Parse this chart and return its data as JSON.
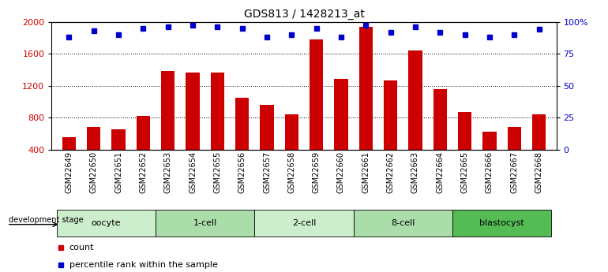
{
  "title": "GDS813 / 1428213_at",
  "samples": [
    "GSM22649",
    "GSM22650",
    "GSM22651",
    "GSM22652",
    "GSM22653",
    "GSM22654",
    "GSM22655",
    "GSM22656",
    "GSM22657",
    "GSM22658",
    "GSM22659",
    "GSM22660",
    "GSM22661",
    "GSM22662",
    "GSM22663",
    "GSM22664",
    "GSM22665",
    "GSM22666",
    "GSM22667",
    "GSM22668"
  ],
  "counts": [
    560,
    680,
    650,
    820,
    1380,
    1360,
    1360,
    1050,
    960,
    840,
    1780,
    1290,
    1940,
    1270,
    1640,
    1160,
    870,
    620,
    680,
    840
  ],
  "percentiles": [
    88,
    93,
    90,
    95,
    96,
    97,
    96,
    95,
    88,
    90,
    95,
    88,
    97,
    92,
    96,
    92,
    90,
    88,
    90,
    94
  ],
  "groups": [
    {
      "name": "oocyte",
      "indices": [
        0,
        1,
        2,
        3
      ],
      "color": "#cceecc"
    },
    {
      "name": "1-cell",
      "indices": [
        4,
        5,
        6,
        7
      ],
      "color": "#aaddaa"
    },
    {
      "name": "2-cell",
      "indices": [
        8,
        9,
        10,
        11
      ],
      "color": "#cceecc"
    },
    {
      "name": "8-cell",
      "indices": [
        12,
        13,
        14,
        15
      ],
      "color": "#aaddaa"
    },
    {
      "name": "blastocyst",
      "indices": [
        16,
        17,
        18,
        19
      ],
      "color": "#55bb55"
    }
  ],
  "bar_color": "#cc0000",
  "dot_color": "#0000cc",
  "ylim_left": [
    400,
    2000
  ],
  "ylim_right": [
    0,
    100
  ],
  "yticks_left": [
    400,
    800,
    1200,
    1600,
    2000
  ],
  "ytick_labels_left": [
    "400",
    "800",
    "1200",
    "1600",
    "2000"
  ],
  "yticks_right": [
    0,
    25,
    50,
    75,
    100
  ],
  "ytick_labels_right": [
    "0",
    "25",
    "50",
    "75",
    "100%"
  ],
  "background_color": "#ffffff",
  "xtick_bg": "#c8c8c8",
  "label_row": "development stage"
}
